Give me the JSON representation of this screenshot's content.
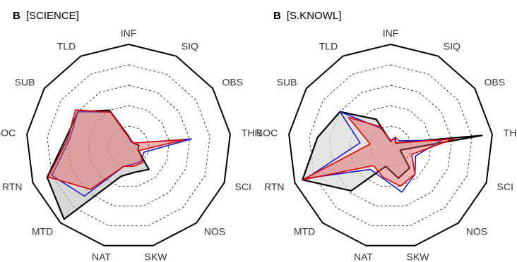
{
  "chart_data": [
    {
      "type": "radar",
      "panel_letter": "B",
      "title": "[SCIENCE]",
      "axes": [
        "INF",
        "SIQ",
        "OBS",
        "THR",
        "SCI",
        "NOS",
        "SKW",
        "NAT",
        "MTD",
        "RTN",
        "SOC",
        "SUB",
        "TLD"
      ],
      "range": [
        0,
        1
      ],
      "rings": 4,
      "series": [
        {
          "color": "#000000",
          "fill": "#bdbdbd",
          "fill_opacity": 0.6,
          "values": [
            0.1,
            0.06,
            0.06,
            0.1,
            0.1,
            0.3,
            0.26,
            0.3,
            0.95,
            0.85,
            0.62,
            0.6,
            0.4
          ]
        },
        {
          "color": "#1a1ac8",
          "fill": "none",
          "fill_opacity": 0,
          "values": [
            0.09,
            0.05,
            0.06,
            0.62,
            0.16,
            0.19,
            0.18,
            0.2,
            0.65,
            0.8,
            0.58,
            0.6,
            0.38
          ]
        },
        {
          "color": "#e00000",
          "fill": "#e06060",
          "fill_opacity": 0.45,
          "values": [
            0.09,
            0.06,
            0.06,
            0.55,
            0.11,
            0.21,
            0.2,
            0.2,
            0.56,
            0.84,
            0.6,
            0.63,
            0.38
          ]
        }
      ]
    },
    {
      "type": "radar",
      "panel_letter": "B",
      "title": "[S.KNOWL]",
      "axes": [
        "INF",
        "SIQ",
        "OBS",
        "THR",
        "SCI",
        "NOS",
        "SKW",
        "NAT",
        "MTD",
        "RTN",
        "SOC",
        "SUB",
        "TLD"
      ],
      "range": [
        0,
        1
      ],
      "rings": 4,
      "series": [
        {
          "color": "#000000",
          "fill": "#d9d9d9",
          "fill_opacity": 0.7,
          "values": [
            0.05,
            0.1,
            0.06,
            0.9,
            0.1,
            0.28,
            0.32,
            0.2,
            0.58,
            0.92,
            0.72,
            0.6,
            0.3
          ]
        },
        {
          "color": "#1a1ac8",
          "fill": "none",
          "fill_opacity": 0,
          "values": [
            0.06,
            0.1,
            0.1,
            0.5,
            0.26,
            0.36,
            0.46,
            0.32,
            0.3,
            0.88,
            0.3,
            0.6,
            0.2
          ]
        },
        {
          "color": "#e00000",
          "fill": "#e06060",
          "fill_opacity": 0.45,
          "values": [
            0.05,
            0.1,
            0.06,
            0.62,
            0.22,
            0.36,
            0.4,
            0.31,
            0.25,
            0.92,
            0.2,
            0.5,
            0.22
          ]
        }
      ]
    }
  ]
}
